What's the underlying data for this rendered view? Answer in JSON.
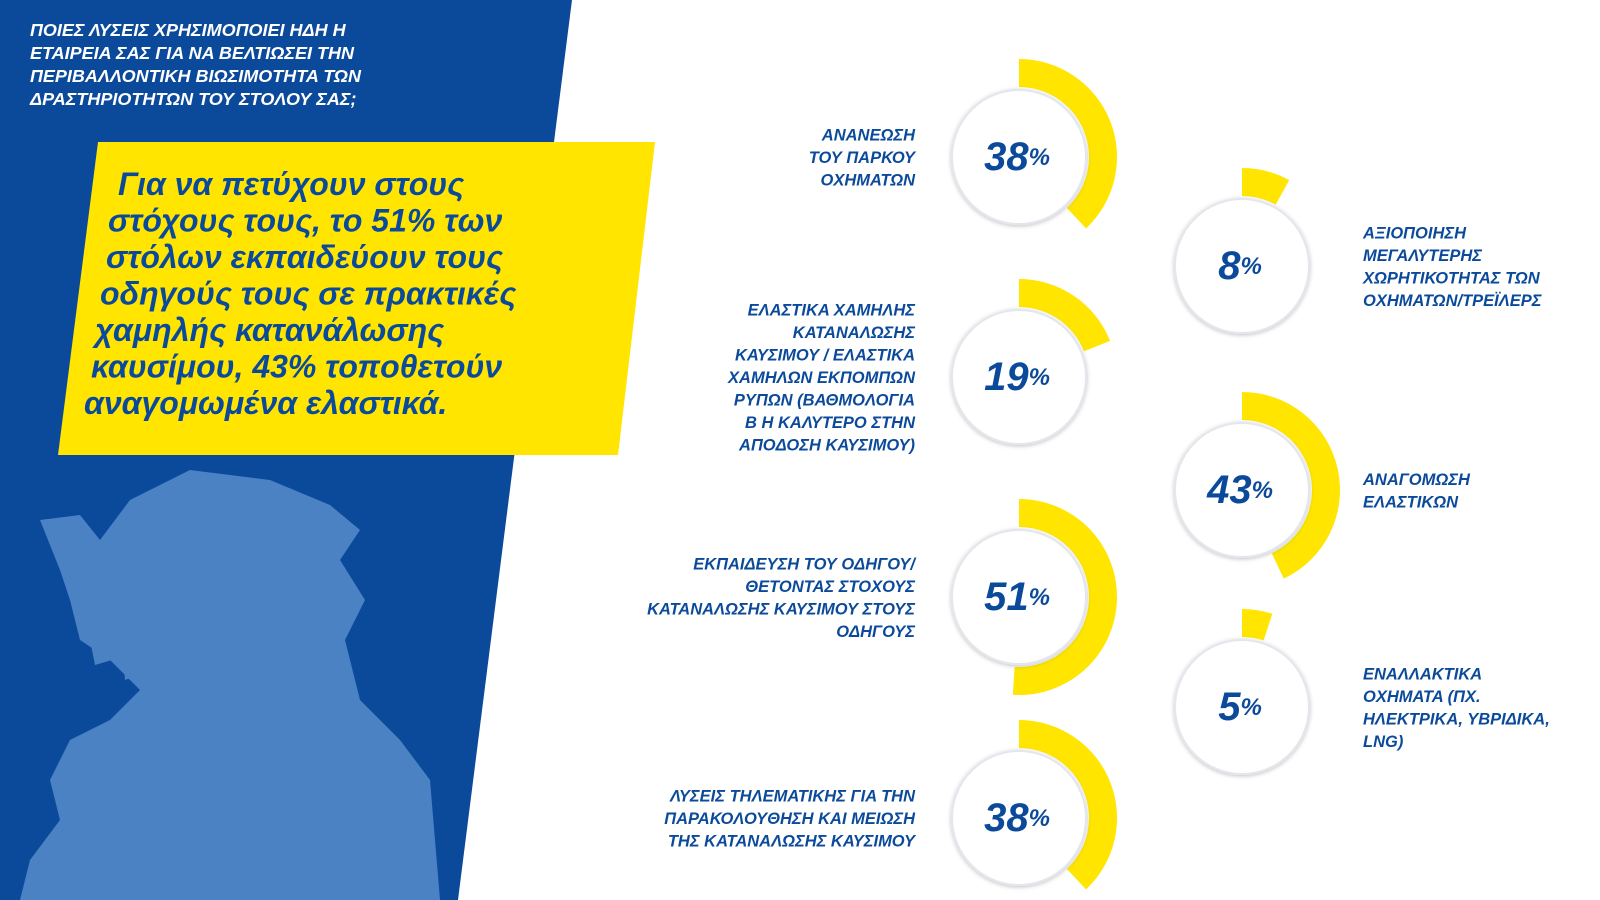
{
  "header": {
    "question": [
      "ΠΟΙΕΣ ΛΥΣΕΙΣ ΧΡΗΣΙΜΟΠΟΙΕΙ ΗΔΗ Η",
      "ΕΤΑΙΡΕΙΑ ΣΑΣ ΓΙΑ ΝΑ ΒΕΛΤΙΩΣΕΙ ΤΗΝ",
      "ΠΕΡΙΒΑΛΛΟΝΤΙΚΗ ΒΙΩΣΙΜΟΤΗΤΑ ΤΩΝ",
      "ΔΡΑΣΤΗΡΙΟΤΗΤΩΝ ΤΟΥ ΣΤΟΛΟΥ ΣΑΣ;"
    ],
    "highlight": [
      "Για να πετύχουν στους",
      "στόχους τους, το 51% των",
      "στόλων εκπαιδεύουν τους",
      "οδηγούς τους σε πρακτικές",
      "χαμηλής κατανάλωσης",
      "καυσίμου, 43% τοποθετούν",
      "αναγομωμένα ελαστικά."
    ]
  },
  "chart_data": [
    {
      "type": "radial",
      "label": [
        "ΑΝΑΝΕΩΣΗ",
        "ΤΟΥ ΠΑΡΚΟΥ",
        "ΟΧΗΜΑΤΩΝ"
      ],
      "values": [
        38
      ],
      "unit": "%",
      "ylim": [
        0,
        100
      ],
      "color": "#ffe500"
    },
    {
      "type": "radial",
      "label": [
        "ΑΞΙΟΠΟΙΗΣΗ",
        "ΜΕΓΑΛΥΤΕΡΗΣ",
        "ΧΩΡΗΤΙΚΟΤΗΤΑΣ ΤΩΝ",
        "ΟΧΗΜΑΤΩΝ/ΤΡΕΪΛΕΡΣ"
      ],
      "values": [
        8
      ],
      "unit": "%",
      "ylim": [
        0,
        100
      ],
      "color": "#ffe500"
    },
    {
      "type": "radial",
      "label": [
        "ΕΛΑΣΤΙΚΑ ΧΑΜΗΛΗΣ",
        "ΚΑΤΑΝΑΛΩΣΗΣ",
        "ΚΑΥΣΙΜΟΥ / ΕΛΑΣΤΙΚΑ",
        "ΧΑΜΗΛΩΝ ΕΚΠΟΜΠΩΝ",
        "ΡΥΠΩΝ (ΒΑΘΜΟΛΟΓΙΑ",
        "Β Η ΚΑΛΥΤΕΡΟ ΣΤΗΝ",
        "ΑΠΟΔΟΣΗ ΚΑΥΣΙΜΟΥ)"
      ],
      "values": [
        19
      ],
      "unit": "%",
      "ylim": [
        0,
        100
      ],
      "color": "#ffe500"
    },
    {
      "type": "radial",
      "label": [
        "ΑΝΑΓΟΜΩΣΗ",
        "ΕΛΑΣΤΙΚΩΝ"
      ],
      "values": [
        43
      ],
      "unit": "%",
      "ylim": [
        0,
        100
      ],
      "color": "#ffe500"
    },
    {
      "type": "radial",
      "label": [
        "ΕΚΠΑΙΔΕΥΣΗ ΤΟΥ ΟΔΗΓΟΥ/",
        "ΘΕΤΟΝΤΑΣ ΣΤΟΧΟΥΣ",
        "ΚΑΤΑΝΑΛΩΣΗΣ ΚΑΥΣΙΜΟΥ ΣΤΟΥΣ",
        "ΟΔΗΓΟΥΣ"
      ],
      "values": [
        51
      ],
      "unit": "%",
      "ylim": [
        0,
        100
      ],
      "color": "#ffe500"
    },
    {
      "type": "radial",
      "label": [
        "ΕΝΑΛΛΑΚΤΙΚΑ",
        "ΟΧΗΜΑΤΑ (ΠΧ.",
        "ΗΛΕΚΤΡΙΚΑ, ΥΒΡΙΔΙΚΑ,",
        "LNG)"
      ],
      "values": [
        5
      ],
      "unit": "%",
      "ylim": [
        0,
        100
      ],
      "color": "#ffe500"
    },
    {
      "type": "radial",
      "label": [
        "ΛΥΣΕΙΣ ΤΗΛΕΜΑΤΙΚΗΣ ΓΙΑ ΤΗΝ",
        "ΠΑΡΑΚΟΛΟΥΘΗΣΗ ΚΑΙ ΜΕΙΩΣΗ",
        "ΤΗΣ ΚΑΤΑΝΑΛΩΣΗΣ ΚΑΥΣΙΜΟΥ"
      ],
      "values": [
        38
      ],
      "unit": "%",
      "ylim": [
        0,
        100
      ],
      "color": "#ffe500"
    }
  ]
}
